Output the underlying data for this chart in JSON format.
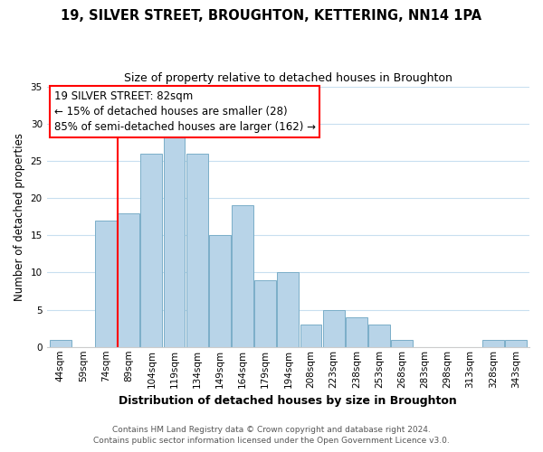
{
  "title1": "19, SILVER STREET, BROUGHTON, KETTERING, NN14 1PA",
  "title2": "Size of property relative to detached houses in Broughton",
  "xlabel": "Distribution of detached houses by size in Broughton",
  "ylabel": "Number of detached properties",
  "bar_labels": [
    "44sqm",
    "59sqm",
    "74sqm",
    "89sqm",
    "104sqm",
    "119sqm",
    "134sqm",
    "149sqm",
    "164sqm",
    "179sqm",
    "194sqm",
    "208sqm",
    "223sqm",
    "238sqm",
    "253sqm",
    "268sqm",
    "283sqm",
    "298sqm",
    "313sqm",
    "328sqm",
    "343sqm"
  ],
  "bar_values": [
    1,
    0,
    17,
    18,
    26,
    29,
    26,
    15,
    19,
    9,
    10,
    3,
    5,
    4,
    3,
    1,
    0,
    0,
    0,
    1,
    1
  ],
  "bar_color": "#b8d4e8",
  "bar_edge_color": "#7aaec8",
  "annotation_title": "19 SILVER STREET: 82sqm",
  "annotation_line1": "← 15% of detached houses are smaller (28)",
  "annotation_line2": "85% of semi-detached houses are larger (162) →",
  "ylim": [
    0,
    35
  ],
  "yticks": [
    0,
    5,
    10,
    15,
    20,
    25,
    30,
    35
  ],
  "footer1": "Contains HM Land Registry data © Crown copyright and database right 2024.",
  "footer2": "Contains public sector information licensed under the Open Government Licence v3.0.",
  "title1_fontsize": 10.5,
  "title2_fontsize": 9.0,
  "xlabel_fontsize": 9.0,
  "ylabel_fontsize": 8.5,
  "tick_fontsize": 7.5,
  "footer_fontsize": 6.5,
  "ann_fontsize": 8.5
}
